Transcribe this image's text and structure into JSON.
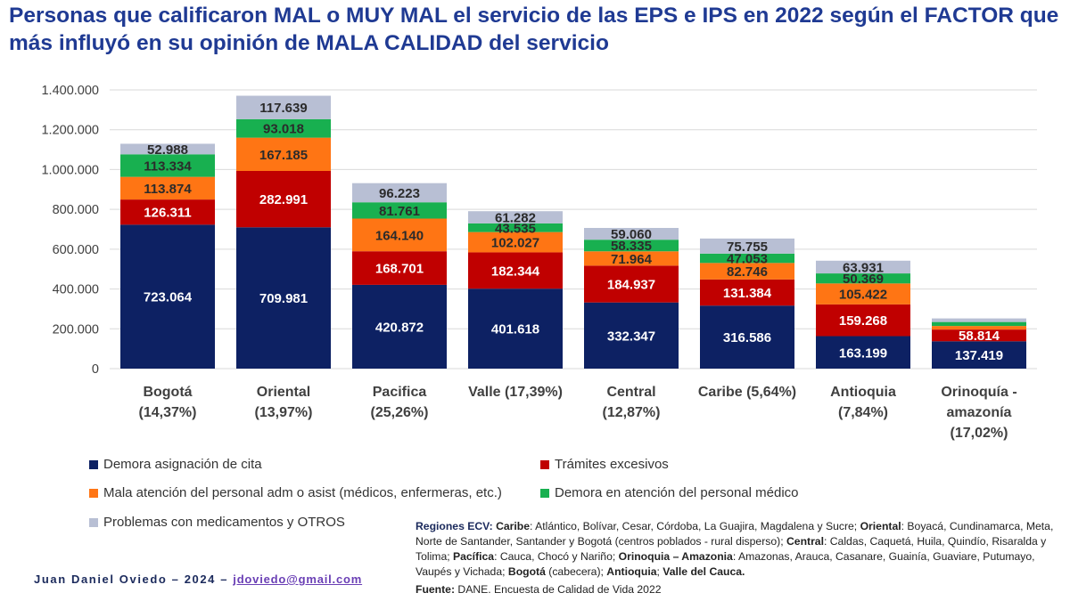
{
  "title": "Personas que calificaron MAL o MUY MAL el servicio de las EPS e IPS en 2022 según el FACTOR que más influyó en su opinión de MALA CALIDAD del servicio",
  "colors": {
    "title": "#1f3a93",
    "series": [
      "#0d2163",
      "#c00000",
      "#ff7514",
      "#18b050",
      "#b8bfd4"
    ]
  },
  "chart_data": {
    "type": "bar",
    "stacked": true,
    "title": "Personas que calificaron MAL o MUY MAL el servicio de las EPS e IPS en 2022 según el FACTOR que más influyó en su opinión de MALA CALIDAD del servicio",
    "xlabel": "",
    "ylabel": "",
    "ylim": [
      0,
      1400000
    ],
    "yticks": [
      0,
      200000,
      400000,
      600000,
      800000,
      1000000,
      1200000,
      1400000
    ],
    "ytick_labels": [
      "0",
      "200.000",
      "400.000",
      "600.000",
      "800.000",
      "1.000.000",
      "1.200.000",
      "1.400.000"
    ],
    "grid": true,
    "legend_position": "bottom",
    "categories": [
      [
        "Bogotá",
        "(14,37%)"
      ],
      [
        "Oriental",
        "(13,97%)"
      ],
      [
        "Pacifica",
        "(25,26%)"
      ],
      [
        "Valle (17,39%)"
      ],
      [
        "Central",
        "(12,87%)"
      ],
      [
        "Caribe (5,64%)"
      ],
      [
        "Antioquia",
        "(7,84%)"
      ],
      [
        "Orinoquía -",
        "amazonía",
        "(17,02%)"
      ]
    ],
    "series": [
      {
        "name": "Demora asignación de cita",
        "values": [
          723064,
          709981,
          420872,
          401618,
          332347,
          316586,
          163199,
          137419
        ],
        "labels": [
          "723.064",
          "709.981",
          "420.872",
          "401.618",
          "332.347",
          "316.586",
          "163.199",
          "137.419"
        ]
      },
      {
        "name": "Trámites excesivos",
        "values": [
          126311,
          282991,
          168701,
          182344,
          184937,
          131384,
          159268,
          58814
        ],
        "labels": [
          "126.311",
          "282.991",
          "168.701",
          "182.344",
          "184.937",
          "131.384",
          "159.268",
          "58.814"
        ]
      },
      {
        "name": "Mala atención del personal adm o asist (médicos, enfermeras, etc.)",
        "values": [
          113874,
          167185,
          164140,
          102027,
          71964,
          82746,
          105422,
          18000
        ],
        "labels": [
          "113.874",
          "167.185",
          "164.140",
          "102.027",
          "71.964",
          "82.746",
          "105.422",
          ""
        ]
      },
      {
        "name": "Demora en atención del personal médico",
        "values": [
          113334,
          93018,
          81761,
          43535,
          58335,
          47053,
          50369,
          20000
        ],
        "labels": [
          "113.334",
          "93.018",
          "81.761",
          "43.535",
          "58.335",
          "47.053",
          "50.369",
          ""
        ]
      },
      {
        "name": "Problemas con medicamentos y OTROS",
        "values": [
          52988,
          117639,
          96223,
          61282,
          59060,
          75755,
          63931,
          18000
        ],
        "labels": [
          "52.988",
          "117.639",
          "96.223",
          "61.282",
          "59.060",
          "75.755",
          "63.931",
          ""
        ]
      }
    ]
  },
  "author": {
    "name": "Juan Daniel Oviedo – 2024 –",
    "email": "jdoviedo@gmail.com"
  },
  "notes": {
    "lead": "Regiones ECV:",
    "segments": [
      {
        "b": "Caribe",
        "t": ": Atlántico, Bolívar, Cesar, Córdoba, La Guajira, Magdalena y Sucre; "
      },
      {
        "b": "Oriental",
        "t": ": Boyacá, Cundinamarca, Meta, Norte de Santander, Santander y Bogotá (centros poblados - rural disperso); "
      },
      {
        "b": "Central",
        "t": ": Caldas, Caquetá, Huila, Quindío, Risaralda y Tolima; "
      },
      {
        "b": "Pacífica",
        "t": ": Cauca, Chocó y Nariño; "
      },
      {
        "b": "Orinoquia – Amazonia",
        "t": ": Amazonas, Arauca, Casanare, Guainía, Guaviare, Putumayo, Vaupés y Vichada; "
      },
      {
        "b": "Bogotá",
        "t": " (cabecera); "
      },
      {
        "b": "Antioquia",
        "t": "; "
      },
      {
        "b": "Valle del Cauca.",
        "t": ""
      }
    ]
  },
  "source": {
    "label": "Fuente:",
    "text": " DANE. Encuesta de Calidad de Vida 2022"
  }
}
